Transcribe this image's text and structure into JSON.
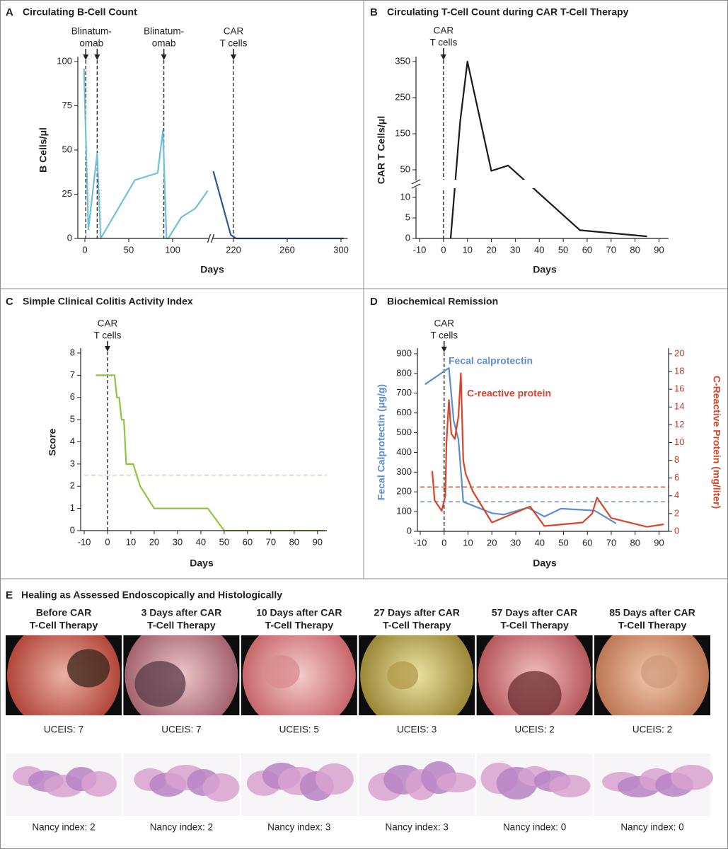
{
  "chart_data": [
    {
      "panel": "A",
      "type": "line",
      "title": "Circulating B-Cell Count",
      "xlabel": "Days",
      "ylabel": "B Cells/μl",
      "xlim": [
        [
          -4,
          140
        ],
        [
          205,
          305
        ]
      ],
      "xticks": [
        0,
        50,
        100,
        220,
        260,
        300
      ],
      "ylim": [
        0,
        100
      ],
      "yticks": [
        0,
        25,
        50,
        75,
        100
      ],
      "vlines": [
        1,
        14,
        90,
        220
      ],
      "annotations": [
        {
          "x": 7.5,
          "lines": [
            "Blinatum-",
            "omab"
          ]
        },
        {
          "x": 90,
          "lines": [
            "Blinatum-",
            "omab"
          ]
        },
        {
          "x": 220,
          "lines": [
            "CAR",
            "T cells"
          ]
        }
      ],
      "series": [
        {
          "color": "#72c0d8",
          "x": [
            -1,
            4,
            14,
            18,
            57,
            83,
            89,
            93,
            95,
            110,
            126,
            140
          ],
          "values": [
            96,
            5,
            48,
            0,
            33,
            37,
            61,
            0,
            0,
            12,
            17,
            27
          ]
        },
        {
          "color": "#2b5797",
          "x": [
            205,
            218,
            222,
            302
          ],
          "values": [
            38,
            2,
            0,
            0
          ]
        }
      ]
    },
    {
      "panel": "B",
      "type": "line",
      "title": "Circulating T-Cell Count during CAR T-Cell Therapy",
      "xlabel": "Days",
      "ylabel": "CAR T Cells/μl",
      "xlim": [
        -10,
        94
      ],
      "xticks": [
        -10,
        0,
        10,
        20,
        30,
        40,
        50,
        60,
        70,
        80,
        90
      ],
      "ylim": [
        [
          0,
          12
        ],
        [
          25,
          350
        ]
      ],
      "yticks": [
        0,
        5,
        10,
        50,
        150,
        250,
        350
      ],
      "vlines": [
        0
      ],
      "annotations": [
        {
          "x": 0,
          "lines": [
            "CAR",
            "T cells"
          ]
        }
      ],
      "series": [
        {
          "color": "#1a1a1a",
          "x": [
            3,
            7,
            10,
            20,
            27,
            57,
            85
          ],
          "values": [
            0,
            185,
            350,
            47,
            62,
            2,
            0.5
          ]
        }
      ]
    },
    {
      "panel": "C",
      "type": "line",
      "title": "Simple Clinical Colitis Activity Index",
      "xlabel": "Days",
      "ylabel": "Score",
      "xlim": [
        -10,
        94
      ],
      "xticks": [
        -10,
        0,
        10,
        20,
        30,
        40,
        50,
        60,
        70,
        80,
        90
      ],
      "ylim": [
        0,
        8
      ],
      "yticks": [
        0,
        1,
        2,
        3,
        4,
        5,
        6,
        7,
        8
      ],
      "vlines": [
        0
      ],
      "annotations": [
        {
          "x": 0,
          "lines": [
            "CAR",
            "T cells"
          ]
        }
      ],
      "hlines": [
        {
          "value": 2.5,
          "color": "#d8d39a"
        }
      ],
      "series": [
        {
          "color": "#8dc63f",
          "x": [
            -5,
            3,
            4,
            5,
            6,
            7,
            8,
            11,
            14,
            20,
            43,
            50,
            93
          ],
          "values": [
            7,
            7,
            6,
            6,
            5,
            5,
            3,
            3,
            2,
            1,
            1,
            0,
            0
          ]
        }
      ]
    },
    {
      "panel": "D",
      "type": "line",
      "title": "Biochemical Remission",
      "xlabel": "Days",
      "ylabel": "Fecal Calprotectin (μg/g)",
      "y2label": "C-Reactive Protein (mg/liter)",
      "xlim": [
        -10,
        94
      ],
      "xticks": [
        -10,
        0,
        10,
        20,
        30,
        40,
        50,
        60,
        70,
        80,
        90
      ],
      "ylim": [
        0,
        900
      ],
      "yticks": [
        0,
        100,
        200,
        300,
        400,
        500,
        600,
        700,
        800,
        900
      ],
      "y2lim": [
        0,
        20
      ],
      "y2ticks": [
        0,
        2,
        4,
        6,
        8,
        10,
        12,
        14,
        16,
        18,
        20
      ],
      "vlines": [
        0
      ],
      "annotations": [
        {
          "x": 0,
          "lines": [
            "CAR",
            "T cells"
          ]
        }
      ],
      "hlines": [
        {
          "value": 150,
          "color": "#6f97cf"
        },
        {
          "value": 5,
          "axis": "y2",
          "color": "#e05a3c"
        }
      ],
      "series": [
        {
          "name": "Fecal calprotectin",
          "color": "#5b8fd0",
          "x": [
            -8,
            2,
            4,
            6,
            8,
            20,
            25,
            35,
            42,
            49,
            63,
            72
          ],
          "values": [
            745,
            828,
            560,
            465,
            150,
            92,
            85,
            120,
            75,
            115,
            105,
            40
          ]
        },
        {
          "name": "C-reactive protein",
          "color": "#d9442a",
          "axis": "y2",
          "x": [
            -5,
            -4,
            -1,
            0.5,
            1,
            2,
            3,
            4.5,
            6,
            7,
            8,
            9,
            12,
            20,
            36,
            42,
            58,
            62,
            64,
            70,
            85,
            92
          ],
          "values": [
            6.8,
            3.5,
            2.3,
            4,
            10,
            14.8,
            11,
            10.4,
            13,
            17.8,
            8,
            6.5,
            4.5,
            1,
            2.8,
            0.6,
            1,
            2,
            3.8,
            1.5,
            0.5,
            0.8
          ]
        }
      ]
    }
  ],
  "healing": {
    "panel": "E",
    "title": "Healing as Assessed Endoscopically and Histologically",
    "columns": [
      {
        "header": [
          "Before CAR",
          "T-Cell Therapy"
        ],
        "endoscopy": "UCEIS: 7",
        "histology": "Nancy index: 2"
      },
      {
        "header": [
          "3 Days after CAR",
          "T-Cell Therapy"
        ],
        "endoscopy": "UCEIS: 7",
        "histology": "Nancy index: 2"
      },
      {
        "header": [
          "10 Days after CAR",
          "T-Cell Therapy"
        ],
        "endoscopy": "UCEIS: 5",
        "histology": "Nancy index: 3"
      },
      {
        "header": [
          "27 Days after CAR",
          "T-Cell Therapy"
        ],
        "endoscopy": "UCEIS: 3",
        "histology": "Nancy index: 3"
      },
      {
        "header": [
          "57 Days after CAR",
          "T-Cell Therapy"
        ],
        "endoscopy": "UCEIS: 2",
        "histology": "Nancy index: 0"
      },
      {
        "header": [
          "85 Days after CAR",
          "T-Cell Therapy"
        ],
        "endoscopy": "UCEIS: 2",
        "histology": "Nancy index: 0"
      }
    ]
  }
}
